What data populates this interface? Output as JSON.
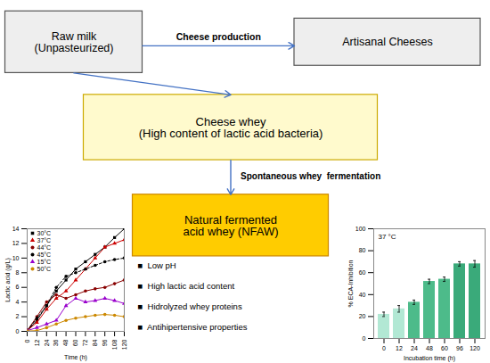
{
  "chart_data": [
    {
      "type": "diagram",
      "annotations": [
        "Raw milk\n(Unpasteurized)",
        "Artisanal Cheeses",
        "Cheese whey\n(High content of lactic acid bacteria)",
        "Natural fermented\nacid whey (NFAW)",
        "Cheese production",
        "Spontaneous whey  fermentation",
        "■  Low pH",
        "■  High lactic acid content",
        "■  Hidrolyzed whey proteins",
        "■  Antihipertensive properties"
      ],
      "colors": [
        "#eeeeee",
        "#eeeeee",
        "#FFFACD",
        "#FFCC00"
      ],
      "color": "#4472C4"
    },
    {
      "type": "line",
      "x_label": "Time (h)",
      "y_label": "Lactic acid (g/L)",
      "x": [
        0,
        12,
        24,
        36,
        48,
        60,
        72,
        84,
        96,
        108,
        120
      ],
      "xlim": [
        0,
        120
      ],
      "xticks": [
        0,
        12,
        24,
        36,
        48,
        60,
        72,
        84,
        96,
        108,
        120
      ],
      "ylim": [
        0,
        14
      ],
      "yticks": [
        0,
        2,
        4,
        6,
        8,
        10,
        12,
        14
      ],
      "legend": "upper left",
      "series": [
        {
          "name": "30°C",
          "color": "black",
          "marker": "square",
          "line_style": "solid",
          "values": [
            0.1,
            1.5,
            3.5,
            5.5,
            7.0,
            8.5,
            9.5,
            10.5,
            11.5,
            12.8,
            14.0
          ]
        },
        {
          "name": "37°C",
          "color": "#cc0000",
          "marker": "triangle",
          "line_style": "solid",
          "values": [
            0.1,
            1.2,
            3.0,
            4.5,
            5.5,
            7.0,
            8.5,
            10.0,
            11.5,
            12.0,
            12.5
          ]
        },
        {
          "name": "44°C",
          "color": "#880000",
          "marker": "circle",
          "line_style": "solid",
          "values": [
            0.1,
            2.0,
            4.0,
            5.0,
            4.5,
            5.0,
            5.5,
            5.8,
            6.0,
            6.5,
            7.0
          ]
        },
        {
          "name": "45°C",
          "color": "black",
          "marker": "circle",
          "line_style": "dashed",
          "values": [
            0.1,
            1.8,
            3.5,
            6.0,
            7.5,
            8.0,
            8.5,
            9.0,
            9.5,
            9.8,
            10.0
          ]
        },
        {
          "name": "15°C",
          "color": "#9900cc",
          "marker": "triangle",
          "line_style": "solid",
          "values": [
            0.1,
            0.5,
            1.0,
            1.5,
            3.5,
            4.5,
            4.0,
            4.2,
            4.5,
            4.2,
            3.8
          ]
        },
        {
          "name": "50°C",
          "color": "#cc8800",
          "marker": "circle",
          "line_style": "solid",
          "values": [
            0.05,
            0.1,
            0.5,
            1.0,
            1.5,
            1.8,
            2.0,
            2.2,
            2.3,
            2.2,
            2.0
          ]
        }
      ]
    },
    {
      "type": "bar",
      "x_label": "Incubation time (h)",
      "y_label": "% ECA-Inhibition",
      "categories": [
        "0",
        "12",
        "24",
        "48",
        "60",
        "96",
        "120"
      ],
      "values": [
        22,
        27,
        33,
        52,
        54,
        68,
        68
      ],
      "errors": [
        2,
        3,
        2,
        2,
        2,
        2,
        3
      ],
      "colors": [
        "#b2e8d4",
        "#b2e8d4",
        "#4dbb8a",
        "#4dbb8a",
        "#4dbb8a",
        "#3aaa7a",
        "#3aaa7a"
      ],
      "ylim": [
        0,
        100
      ],
      "yticks": [
        0,
        20,
        40,
        60,
        80,
        100
      ],
      "annotations": [
        "37 °C"
      ]
    }
  ]
}
